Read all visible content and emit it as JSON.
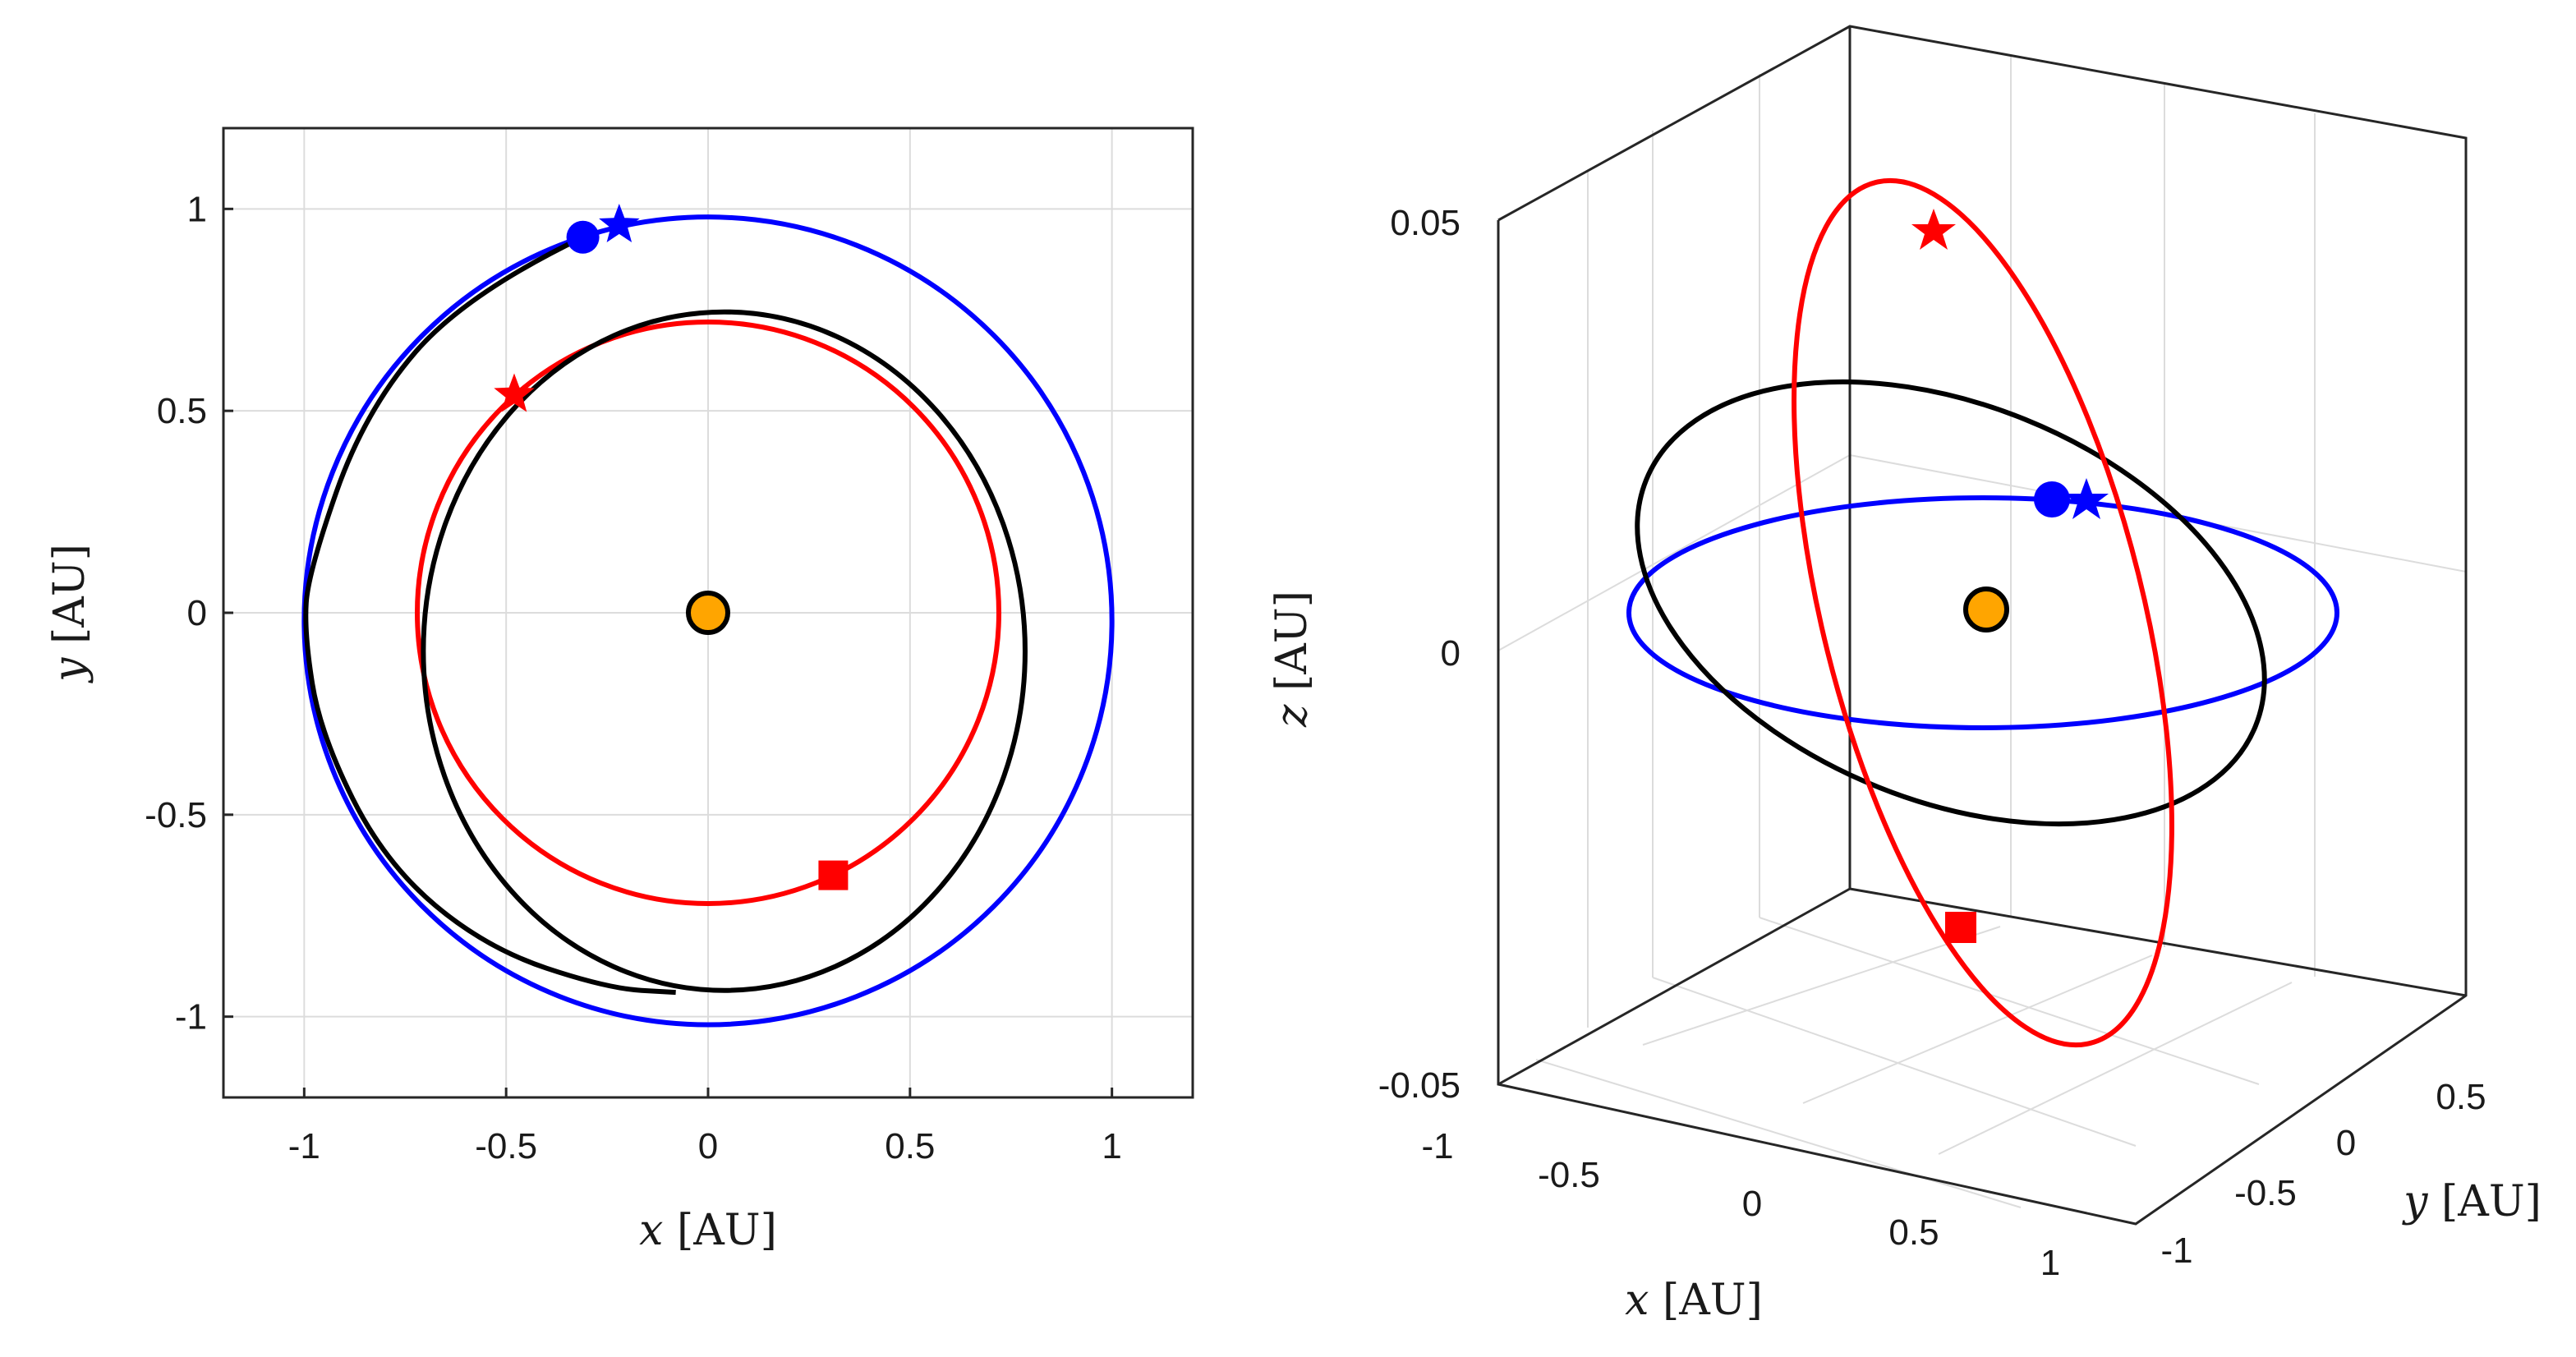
{
  "chart_data": [
    {
      "type": "line",
      "view": "2d",
      "title": "",
      "xlabel": {
        "var": "x",
        "unit": "[AU]"
      },
      "ylabel": {
        "var": "y",
        "unit": "[AU]"
      },
      "xlim": [
        -1.2,
        1.2
      ],
      "ylim": [
        -1.2,
        1.2
      ],
      "grid": true,
      "xticks": [
        -1,
        -0.5,
        0,
        0.5,
        1
      ],
      "xtick_labels": [
        "-1",
        "-0.5",
        "0",
        "0.5",
        "1"
      ],
      "yticks": [
        -1,
        -0.5,
        0,
        0.5,
        1
      ],
      "ytick_labels": [
        "-1",
        "-0.5",
        "0",
        "0.5",
        "1"
      ],
      "series": [
        {
          "name": "blue orbit",
          "color": "#0000ff",
          "ellipse": {
            "cx": 0.0,
            "cy": -0.02,
            "rx": 1.0,
            "ry": 1.0
          }
        },
        {
          "name": "red orbit",
          "color": "#ff0000",
          "ellipse": {
            "cx": 0.0,
            "cy": 0.0,
            "rx": 0.72,
            "ry": 0.72
          }
        },
        {
          "name": "black orbit (inner)",
          "color": "#000000",
          "ellipse": {
            "cx": 0.04,
            "cy": -0.095,
            "rx": 0.745,
            "ry": 0.84
          }
        },
        {
          "name": "black transfer arc",
          "color": "#000000",
          "points": [
            [
              -0.31,
              0.93
            ],
            [
              -0.6,
              0.79
            ],
            [
              -0.85,
              0.5
            ],
            [
              -0.99,
              0.1
            ],
            [
              -1.0,
              -0.05
            ],
            [
              -0.96,
              -0.3
            ],
            [
              -0.8,
              -0.62
            ],
            [
              -0.55,
              -0.83
            ],
            [
              -0.25,
              -0.93
            ],
            [
              -0.08,
              -0.94
            ]
          ]
        }
      ],
      "markers": [
        {
          "name": "sun",
          "shape": "circle",
          "color": "#ffa500",
          "x": 0.0,
          "y": 0.0
        },
        {
          "name": "blue circle",
          "shape": "circle",
          "color": "#0000ff",
          "x": -0.31,
          "y": 0.93
        },
        {
          "name": "blue star",
          "shape": "star",
          "color": "#0000ff",
          "x": -0.22,
          "y": 0.96
        },
        {
          "name": "red star",
          "shape": "star",
          "color": "#ff0000",
          "x": -0.48,
          "y": 0.54
        },
        {
          "name": "red square",
          "shape": "square",
          "color": "#ff0000",
          "x": 0.31,
          "y": -0.65
        }
      ]
    },
    {
      "type": "line",
      "view": "3d",
      "title": "",
      "xlabel": {
        "var": "x",
        "unit": "[AU]"
      },
      "ylabel": {
        "var": "y",
        "unit": "[AU]"
      },
      "zlabel": {
        "var": "z",
        "unit": "[AU]"
      },
      "xlim": [
        -1,
        1
      ],
      "ylim": [
        -1,
        1
      ],
      "zlim": [
        -0.05,
        0.05
      ],
      "grid": true,
      "xtick_labels": [
        "-1",
        "-0.5",
        "0",
        "0.5",
        "1"
      ],
      "ytick_labels": [
        "-1",
        "-0.5",
        "0",
        "0.5"
      ],
      "ztick_labels": [
        "-0.05",
        "0",
        "0.05"
      ],
      "series": [
        {
          "name": "blue orbit",
          "color": "#0000ff"
        },
        {
          "name": "red orbit",
          "color": "#ff0000"
        },
        {
          "name": "black orbit",
          "color": "#000000"
        }
      ],
      "markers": [
        {
          "name": "sun",
          "shape": "circle",
          "color": "#ffa500"
        },
        {
          "name": "blue circle",
          "shape": "circle",
          "color": "#0000ff"
        },
        {
          "name": "blue star",
          "shape": "star",
          "color": "#0000ff"
        },
        {
          "name": "red star",
          "shape": "star",
          "color": "#ff0000"
        },
        {
          "name": "red square",
          "shape": "square",
          "color": "#ff0000"
        }
      ]
    }
  ]
}
